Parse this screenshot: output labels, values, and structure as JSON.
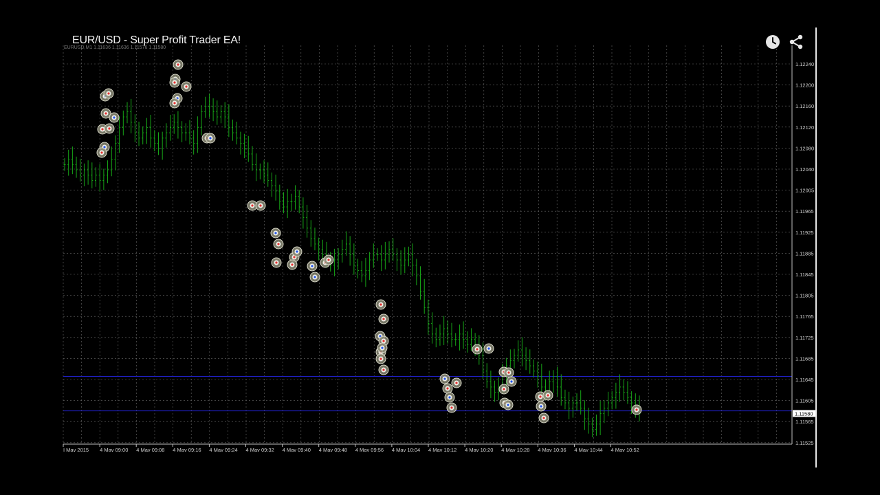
{
  "video": {
    "title": "EUR/USD - Super Profit Trader EA!",
    "watch_later_icon": "clock-icon",
    "share_icon": "share-icon"
  },
  "chart_data": {
    "type": "candlestick",
    "header_text": "EURUSD,M1 1.11636 1.11636 1.11576 1.11580",
    "ylim": [
      1.11505,
      1.12265
    ],
    "y_ticks": [
      "1.12240",
      "1.12200",
      "1.12160",
      "1.12120",
      "1.12080",
      "1.12040",
      "1.12005",
      "1.11965",
      "1.11925",
      "1.11885",
      "1.11845",
      "1.11805",
      "1.11765",
      "1.11725",
      "1.11685",
      "1.11645",
      "1.11605",
      "1.11565",
      "1.11525"
    ],
    "x_ticks": [
      "I Mav 2015",
      "4 Mav 09:00",
      "4 Mav 09:08",
      "4 Mav 09:16",
      "4 Mav 09:24",
      "4 Mav 09:32",
      "4 Mav 09:40",
      "4 Mav 09:48",
      "4 Mav 09:56",
      "4 Mav 10:04",
      "4 Mav 10:12",
      "4 Mav 10:20",
      "4 Mav 10:28",
      "4 Mav 10:36",
      "4 Mav 10:44",
      "4 Mav 10:52"
    ],
    "current_price": "1.11580",
    "horizontal_lines": [
      1.1165,
      1.11585
    ],
    "grid": true,
    "colors": {
      "background": "#000000",
      "grid": "#6b6b6b",
      "bars": "#17a617",
      "level_line": "#2020c8",
      "axis_text": "#d0d0d0"
    },
    "prices": [
      1.1205,
      1.1206,
      1.1205,
      1.1204,
      1.1203,
      1.1204,
      1.1203,
      1.1202,
      1.1203,
      1.1202,
      1.1203,
      1.1204,
      1.1206,
      1.1209,
      1.1212,
      1.1214,
      1.1215,
      1.1213,
      1.1211,
      1.121,
      1.1211,
      1.1212,
      1.121,
      1.1209,
      1.1208,
      1.121,
      1.1211,
      1.1212,
      1.1213,
      1.1212,
      1.1211,
      1.1211,
      1.121,
      1.1209,
      1.1212,
      1.1215,
      1.1216,
      1.1216,
      1.1215,
      1.1214,
      1.1215,
      1.1214,
      1.1212,
      1.1211,
      1.121,
      1.1209,
      1.1208,
      1.1207,
      1.1205,
      1.1204,
      1.1204,
      1.1203,
      1.1202,
      1.1201,
      1.12,
      1.1198,
      1.1197,
      1.1198,
      1.1198,
      1.1199,
      1.1197,
      1.1195,
      1.1193,
      1.1191,
      1.119,
      1.1189,
      1.1188,
      1.1187,
      1.1186,
      1.1187,
      1.1188,
      1.1189,
      1.119,
      1.1188,
      1.1186,
      1.1185,
      1.1184,
      1.1185,
      1.1187,
      1.1188,
      1.1188,
      1.1187,
      1.1188,
      1.1189,
      1.1188,
      1.1187,
      1.1186,
      1.1187,
      1.1188,
      1.1186,
      1.1184,
      1.1181,
      1.1178,
      1.1175,
      1.1173,
      1.1172,
      1.1173,
      1.1174,
      1.1173,
      1.1172,
      1.1172,
      1.1173,
      1.1172,
      1.1171,
      1.1172,
      1.1171,
      1.1169,
      1.1166,
      1.1164,
      1.1163,
      1.1162,
      1.1163,
      1.1165,
      1.1167,
      1.1168,
      1.1169,
      1.117,
      1.1169,
      1.1168,
      1.1167,
      1.1166,
      1.1165,
      1.1163,
      1.1162,
      1.1164,
      1.1165,
      1.1163,
      1.1161,
      1.116,
      1.1159,
      1.116,
      1.116,
      1.1159,
      1.1157,
      1.1156,
      1.1155,
      1.1156,
      1.1158,
      1.1159,
      1.116,
      1.1161,
      1.1162,
      1.1163,
      1.1162,
      1.1161,
      1.116,
      1.1159,
      1.1158
    ]
  }
}
